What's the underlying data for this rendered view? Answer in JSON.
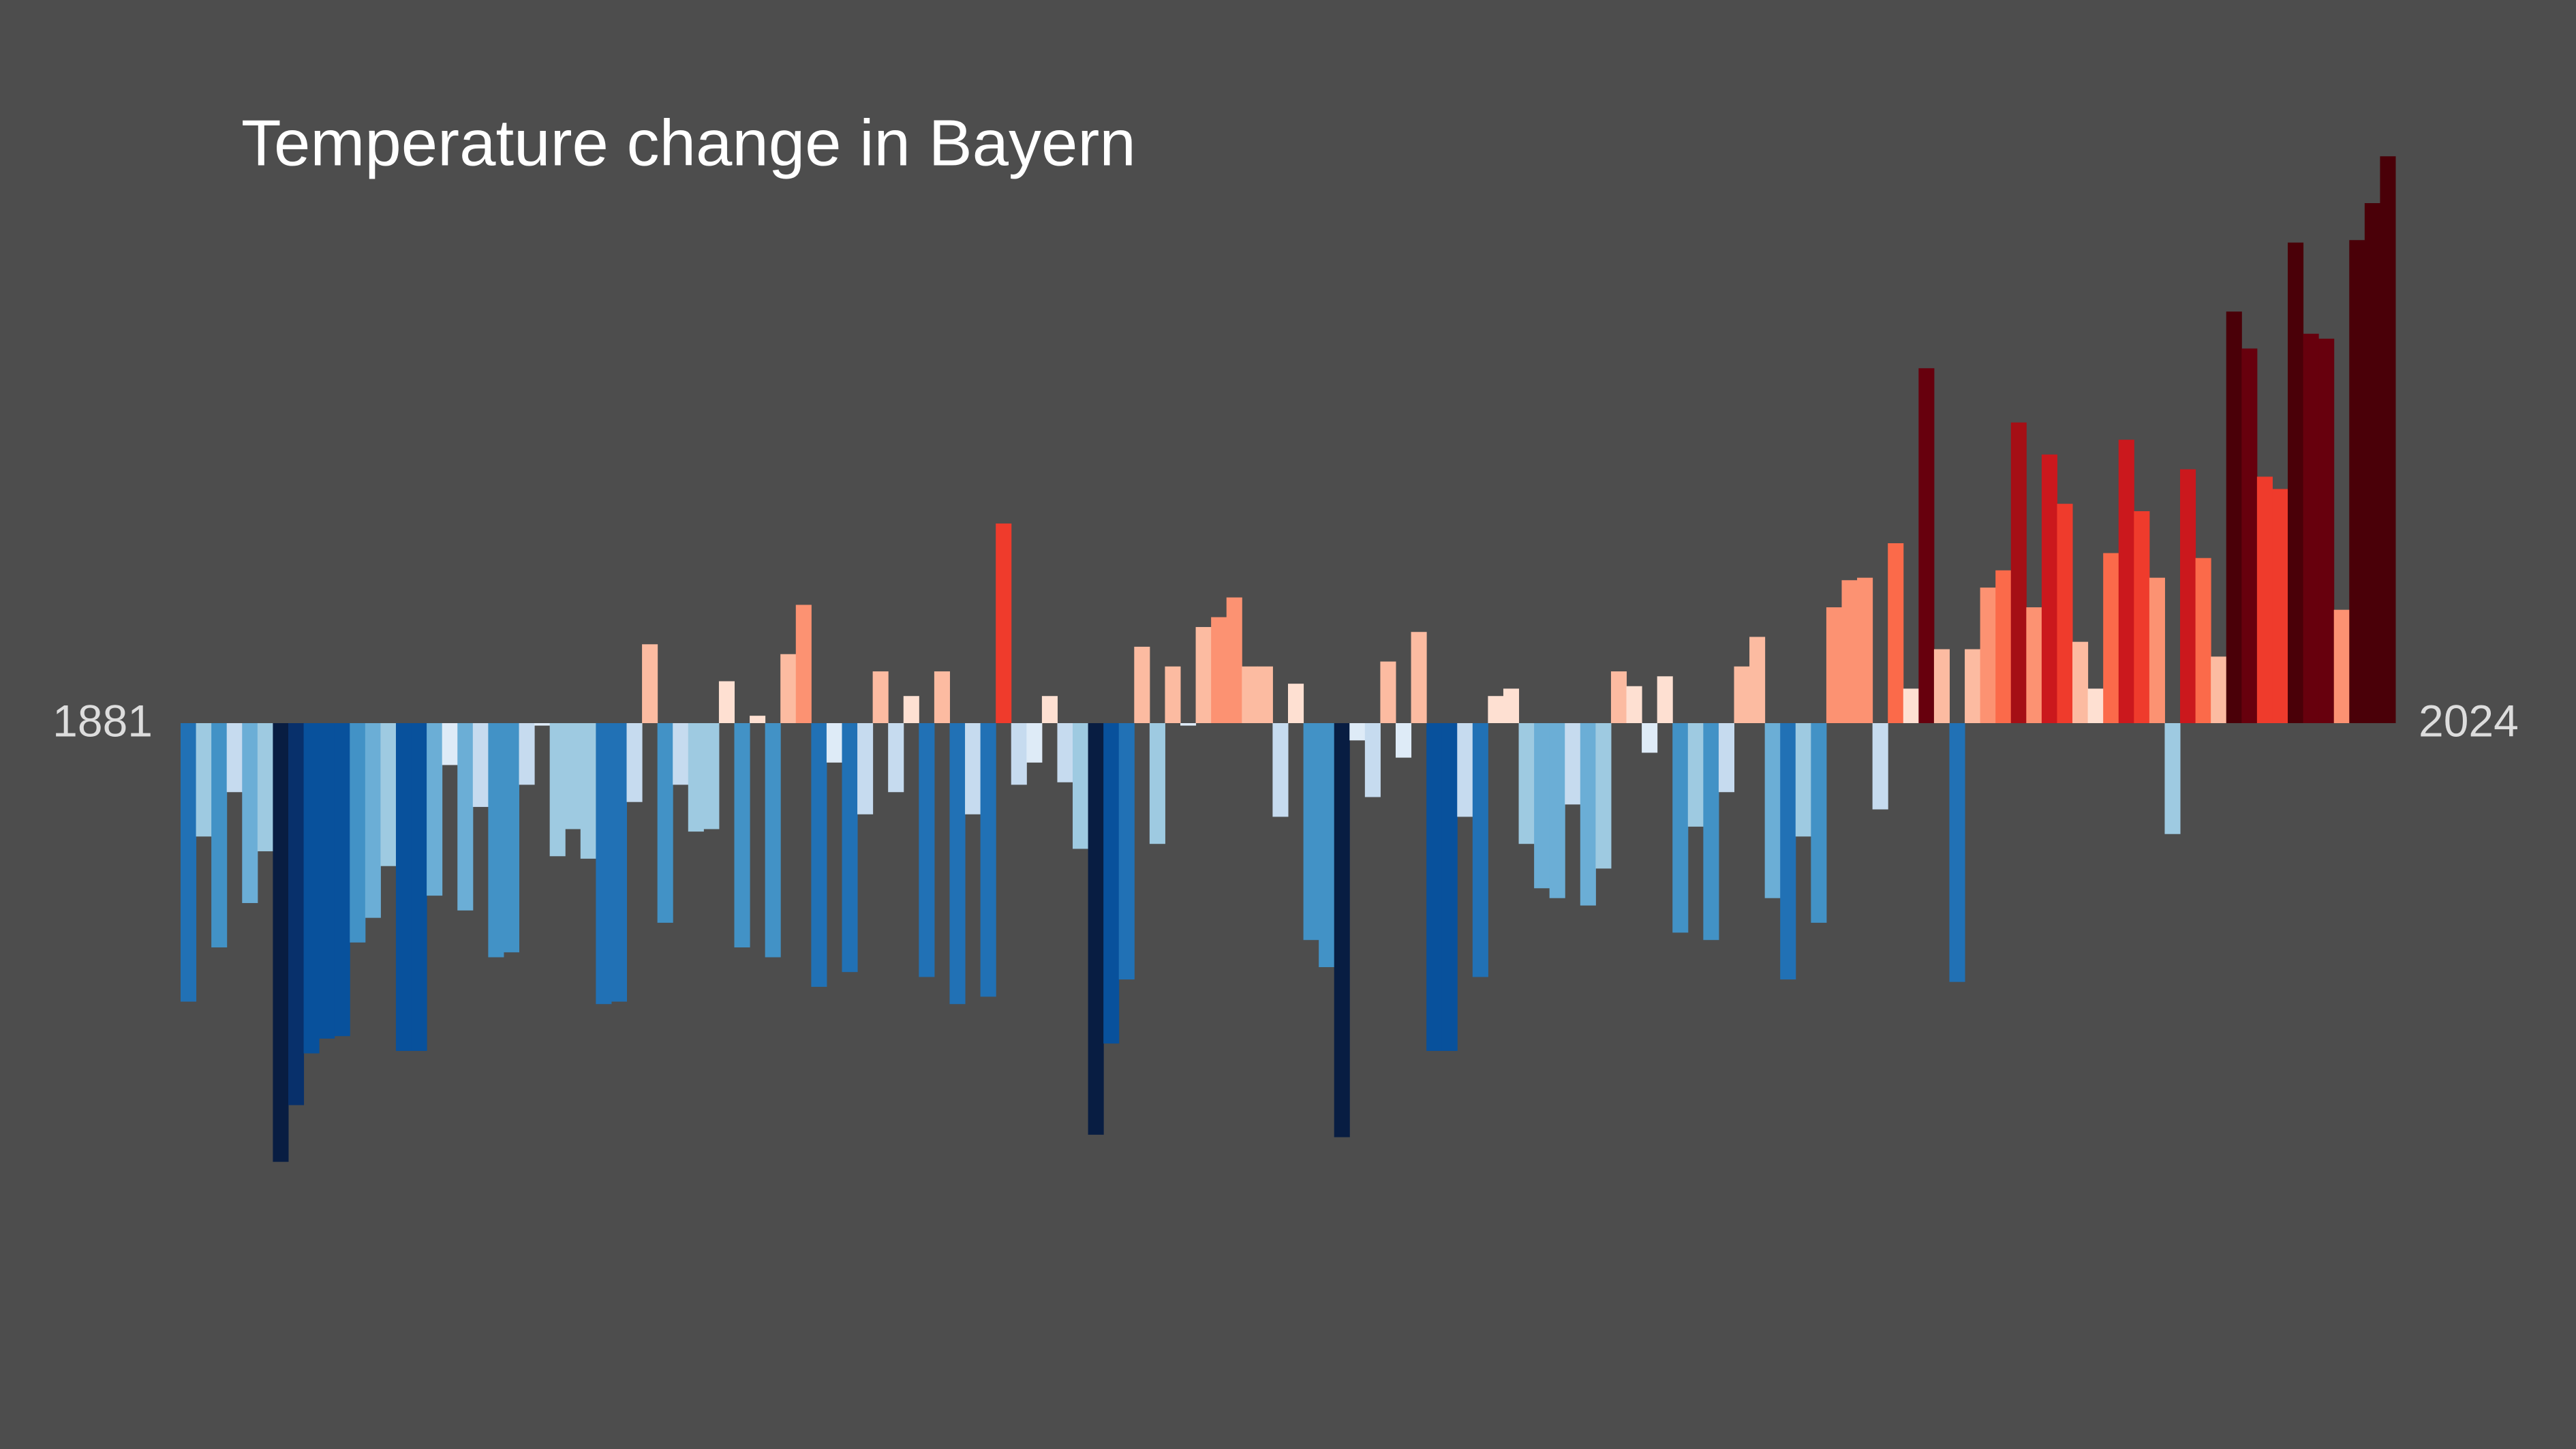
{
  "chart_data": {
    "type": "bar",
    "title": "Temperature change in Bayern",
    "categories": [
      "1881",
      null,
      null,
      null,
      null,
      null,
      null,
      null,
      null,
      null,
      null,
      null,
      null,
      null,
      null,
      null,
      null,
      null,
      null,
      null,
      null,
      null,
      null,
      null,
      null,
      null,
      null,
      null,
      null,
      null,
      null,
      null,
      null,
      null,
      null,
      null,
      null,
      null,
      null,
      null,
      null,
      null,
      null,
      null,
      null,
      null,
      null,
      null,
      null,
      null,
      null,
      null,
      null,
      null,
      null,
      null,
      null,
      null,
      null,
      null,
      null,
      null,
      null,
      null,
      null,
      null,
      null,
      null,
      null,
      null,
      null,
      null,
      null,
      null,
      null,
      null,
      null,
      null,
      null,
      null,
      null,
      null,
      null,
      null,
      null,
      null,
      null,
      null,
      null,
      null,
      null,
      null,
      null,
      null,
      null,
      null,
      null,
      null,
      null,
      null,
      null,
      null,
      null,
      null,
      null,
      null,
      null,
      null,
      null,
      null,
      null,
      null,
      null,
      null,
      null,
      null,
      null,
      null,
      null,
      null,
      null,
      null,
      null,
      null,
      null,
      null,
      null,
      null,
      null,
      null,
      null,
      null,
      null,
      null,
      null,
      null,
      null,
      null,
      null,
      null,
      null,
      null,
      null,
      "2024"
    ],
    "values": [
      -1.13,
      -0.46,
      -0.91,
      -0.28,
      -0.73,
      -0.52,
      -1.78,
      -1.55,
      -1.34,
      -1.28,
      -1.27,
      -0.89,
      -0.79,
      -0.58,
      -1.33,
      -1.33,
      -0.7,
      -0.17,
      -0.76,
      -0.34,
      -0.95,
      -0.93,
      -0.25,
      -0.01,
      -0.54,
      -0.43,
      -0.55,
      -1.14,
      -1.13,
      -0.32,
      0.32,
      -0.81,
      -0.25,
      -0.44,
      -0.43,
      0.17,
      -0.91,
      0.03,
      -0.95,
      0.28,
      0.48,
      -1.07,
      -0.16,
      -1.01,
      -0.37,
      0.21,
      -0.28,
      0.11,
      -1.03,
      0.21,
      -1.14,
      -0.37,
      -1.11,
      0.81,
      -0.25,
      -0.16,
      0.11,
      -0.24,
      -0.51,
      -1.67,
      -1.3,
      -1.04,
      0.31,
      -0.49,
      0.23,
      -0.01,
      0.39,
      0.43,
      0.51,
      0.23,
      0.23,
      -0.38,
      0.16,
      -0.88,
      -0.99,
      -1.68,
      -0.07,
      -0.3,
      0.25,
      -0.14,
      0.37,
      -1.33,
      -1.33,
      -0.38,
      -1.03,
      0.11,
      0.14,
      -0.49,
      -0.67,
      -0.71,
      -0.33,
      -0.74,
      -0.59,
      0.21,
      0.15,
      -0.12,
      0.19,
      -0.85,
      -0.42,
      -0.88,
      -0.28,
      0.23,
      0.35,
      -0.71,
      -1.04,
      -0.46,
      -0.81,
      0.47,
      0.58,
      0.59,
      -0.35,
      0.73,
      0.14,
      1.44,
      0.3,
      -1.05,
      0.3,
      0.55,
      0.62,
      1.22,
      0.47,
      1.09,
      0.89,
      0.33,
      0.14,
      0.69,
      1.15,
      0.86,
      0.59,
      -0.45,
      1.03,
      0.67,
      0.27,
      1.67,
      1.52,
      1.0,
      0.95,
      1.95,
      1.58,
      1.56,
      0.46,
      1.96,
      2.11,
      2.3
    ],
    "ylim": [
      -2.5,
      2.5
    ],
    "colormap": [
      "#081d42",
      "#08306b",
      "#08519c",
      "#2171b5",
      "#4292c6",
      "#6baed6",
      "#9ecae1",
      "#c6dbef",
      "#deebf7",
      "#fee0d2",
      "#fcbba1",
      "#fc9272",
      "#fb6a4a",
      "#ef3b2c",
      "#cb181d",
      "#a50f15",
      "#67000d",
      "#4a0008"
    ],
    "clim": [
      -1.8,
      1.8
    ]
  }
}
